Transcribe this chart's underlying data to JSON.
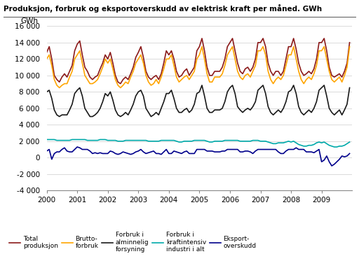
{
  "title": "Produksjon, forbruk og eksportoverskudd av elektrisk kraft per måned. GWh",
  "ylabel": "GWh",
  "ylim": [
    -4000,
    16000
  ],
  "yticks": [
    -4000,
    -2000,
    0,
    2000,
    4000,
    6000,
    8000,
    10000,
    12000,
    14000,
    16000
  ],
  "bg_color": "#ffffff",
  "grid_color": "#cccccc",
  "series_order": [
    "total_produksjon",
    "brutto_forbruk",
    "forbruk_alminnelig",
    "forbruk_kraftintensiv",
    "eksport_overskudd"
  ],
  "series": {
    "total_produksjon": {
      "label": "Total\nproduksjon",
      "color": "#8B1A1A",
      "linewidth": 1.2
    },
    "brutto_forbruk": {
      "label": "Brutto-\nforbruk",
      "color": "#FFA500",
      "linewidth": 1.2
    },
    "forbruk_alminnelig": {
      "label": "Forbruk i\nalminnelig\nforsyning",
      "color": "#1a1a1a",
      "linewidth": 1.2
    },
    "forbruk_kraftintensiv": {
      "label": "Forbruk i\nkraftintensiv\nindustri i alt",
      "color": "#00AAAA",
      "linewidth": 1.2
    },
    "eksport_overskudd": {
      "label": "Eksport-\noverskudd",
      "color": "#00008B",
      "linewidth": 1.2
    }
  },
  "total_produksjon": [
    12800,
    13500,
    12000,
    10000,
    9500,
    9200,
    9800,
    10200,
    9800,
    10500,
    11200,
    13000,
    13800,
    14200,
    12500,
    11000,
    10500,
    9800,
    9500,
    9800,
    10000,
    10800,
    11500,
    12500,
    12000,
    12800,
    11500,
    10000,
    9200,
    9000,
    9500,
    9800,
    9500,
    10200,
    11000,
    12200,
    12800,
    13500,
    12200,
    10500,
    9800,
    9500,
    9800,
    10000,
    9500,
    10200,
    11500,
    13000,
    12500,
    13000,
    12000,
    10500,
    9800,
    10000,
    10500,
    10800,
    10000,
    10500,
    11000,
    13000,
    13500,
    14500,
    13000,
    11000,
    10000,
    10000,
    10500,
    10500,
    10500,
    11000,
    12000,
    13500,
    14000,
    14500,
    13000,
    11500,
    10500,
    10200,
    10800,
    11000,
    10500,
    11000,
    12000,
    14000,
    14000,
    14500,
    13500,
    11500,
    10500,
    10000,
    10500,
    10500,
    10000,
    10500,
    12000,
    13500,
    13500,
    14500,
    13200,
    11500,
    10500,
    10000,
    10200,
    10500,
    10200,
    10800,
    12000,
    14000,
    14000,
    14500,
    13000,
    11000,
    10000,
    9800,
    10000,
    10200,
    9800,
    10500,
    11500,
    14000
  ],
  "brutto_forbruk": [
    12000,
    12500,
    11200,
    9500,
    8800,
    8500,
    8800,
    9000,
    9000,
    9800,
    10500,
    12000,
    12500,
    13000,
    11500,
    10000,
    9500,
    9000,
    9000,
    9200,
    9500,
    10200,
    11000,
    12000,
    11500,
    12000,
    10800,
    9500,
    8800,
    8500,
    8800,
    9200,
    9000,
    9800,
    10500,
    11500,
    12000,
    12500,
    11500,
    10000,
    9200,
    8800,
    9000,
    9500,
    9000,
    9800,
    10800,
    12000,
    12000,
    12500,
    11200,
    9800,
    9200,
    9500,
    9800,
    10000,
    9500,
    10000,
    10500,
    12000,
    12500,
    13500,
    12000,
    10200,
    9200,
    9200,
    9800,
    9800,
    9800,
    10200,
    11200,
    12500,
    13000,
    13500,
    12000,
    10500,
    9800,
    9500,
    10000,
    10200,
    9800,
    10500,
    11200,
    13000,
    13000,
    13500,
    12500,
    10500,
    9500,
    9000,
    9500,
    9800,
    9500,
    10000,
    11200,
    12500,
    12500,
    13500,
    12000,
    10500,
    9500,
    9000,
    9500,
    9800,
    9500,
    10200,
    11200,
    13000,
    13000,
    13500,
    12000,
    10500,
    9500,
    9200,
    9500,
    9800,
    9200,
    10000,
    11000,
    13500
  ],
  "forbruk_alminnelig": [
    8000,
    8200,
    7200,
    5800,
    5200,
    5000,
    5200,
    5200,
    5200,
    5800,
    6500,
    7800,
    8200,
    8500,
    7500,
    6000,
    5500,
    5000,
    5000,
    5200,
    5500,
    6000,
    6800,
    7800,
    7500,
    8000,
    7000,
    5800,
    5200,
    5000,
    5200,
    5500,
    5200,
    5800,
    6500,
    7500,
    8000,
    8200,
    7500,
    6000,
    5500,
    5000,
    5200,
    5500,
    5200,
    6000,
    6800,
    7800,
    7800,
    8200,
    7200,
    6000,
    5500,
    5500,
    5800,
    6000,
    5500,
    5800,
    6500,
    7800,
    8000,
    8800,
    7500,
    6000,
    5500,
    5500,
    5800,
    5800,
    5800,
    6000,
    6800,
    8000,
    8500,
    8800,
    7800,
    6200,
    5800,
    5500,
    5800,
    6000,
    5800,
    6200,
    6800,
    8200,
    8500,
    8800,
    7800,
    6200,
    5500,
    5200,
    5500,
    5800,
    5500,
    6000,
    6800,
    8000,
    8200,
    8800,
    7800,
    6200,
    5500,
    5200,
    5500,
    5800,
    5500,
    6000,
    6800,
    8200,
    8500,
    8800,
    7500,
    6000,
    5500,
    5200,
    5500,
    5800,
    5200,
    5800,
    6500,
    8500
  ],
  "forbruk_kraftintensiv": [
    2200,
    2200,
    2200,
    2200,
    2100,
    2100,
    2100,
    2100,
    2100,
    2100,
    2200,
    2200,
    2200,
    2200,
    2200,
    2200,
    2100,
    2100,
    2100,
    2100,
    2100,
    2200,
    2200,
    2200,
    2100,
    2100,
    2100,
    2100,
    2000,
    2000,
    2000,
    2100,
    2100,
    2100,
    2100,
    2100,
    2100,
    2100,
    2100,
    2100,
    2000,
    2000,
    2000,
    2000,
    2000,
    2100,
    2100,
    2100,
    2100,
    2100,
    2100,
    2000,
    1900,
    1900,
    2000,
    2000,
    2000,
    2000,
    2100,
    2100,
    2100,
    2100,
    2100,
    2000,
    1900,
    1900,
    2000,
    2000,
    2000,
    2000,
    2100,
    2100,
    2100,
    2100,
    2100,
    2100,
    2000,
    2000,
    2000,
    2000,
    2000,
    2100,
    2100,
    2100,
    2000,
    2000,
    2000,
    1900,
    1800,
    1700,
    1700,
    1800,
    1800,
    1800,
    1900,
    2000,
    1900,
    2000,
    1800,
    1600,
    1500,
    1400,
    1400,
    1500,
    1500,
    1600,
    1800,
    1900,
    1800,
    1900,
    1700,
    1500,
    1400,
    1300,
    1300,
    1400,
    1400,
    1500,
    1700,
    1900
  ],
  "eksport_overskudd": [
    800,
    1000,
    -200,
    500,
    700,
    700,
    1000,
    1200,
    800,
    700,
    700,
    1000,
    1300,
    1200,
    1000,
    1000,
    1000,
    800,
    500,
    600,
    500,
    600,
    500,
    500,
    500,
    800,
    700,
    500,
    400,
    500,
    700,
    600,
    500,
    400,
    500,
    700,
    800,
    1000,
    700,
    500,
    600,
    700,
    800,
    500,
    500,
    400,
    700,
    1000,
    500,
    500,
    800,
    700,
    600,
    500,
    700,
    800,
    500,
    500,
    500,
    1000,
    1000,
    1000,
    1000,
    800,
    800,
    800,
    700,
    700,
    700,
    800,
    800,
    1000,
    1000,
    1000,
    1000,
    1000,
    700,
    700,
    800,
    800,
    700,
    500,
    800,
    1000,
    1000,
    1000,
    1000,
    1000,
    1000,
    1000,
    1000,
    700,
    500,
    500,
    800,
    1000,
    1000,
    1000,
    1200,
    1000,
    1000,
    1000,
    700,
    700,
    700,
    600,
    800,
    1000,
    -500,
    -300,
    200,
    -500,
    -1000,
    -800,
    -500,
    -200,
    200,
    100,
    200,
    500
  ]
}
